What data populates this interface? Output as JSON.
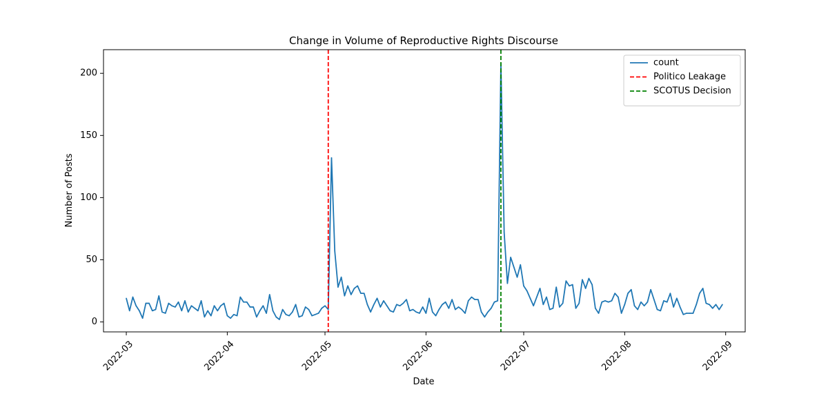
{
  "chart_data": {
    "type": "line",
    "title": "Change in Volume of Reproductive Rights Discourse",
    "xlabel": "Date",
    "ylabel": "Number of Posts",
    "grid": false,
    "legend_position": "top-right",
    "xlim": [
      "2022-02-22",
      "2022-09-07"
    ],
    "ylim": [
      -8,
      219
    ],
    "x_ticks": [
      "2022-03",
      "2022-04",
      "2022-05",
      "2022-06",
      "2022-07",
      "2022-08",
      "2022-09"
    ],
    "y_ticks": [
      0,
      50,
      100,
      150,
      200
    ],
    "series": [
      {
        "name": "count",
        "color": "#1f77b4",
        "style": "solid",
        "x": [
          "2022-03-01",
          "2022-03-02",
          "2022-03-03",
          "2022-03-04",
          "2022-03-05",
          "2022-03-06",
          "2022-03-07",
          "2022-03-08",
          "2022-03-09",
          "2022-03-10",
          "2022-03-11",
          "2022-03-12",
          "2022-03-13",
          "2022-03-14",
          "2022-03-15",
          "2022-03-16",
          "2022-03-17",
          "2022-03-18",
          "2022-03-19",
          "2022-03-20",
          "2022-03-21",
          "2022-03-22",
          "2022-03-23",
          "2022-03-24",
          "2022-03-25",
          "2022-03-26",
          "2022-03-27",
          "2022-03-28",
          "2022-03-29",
          "2022-03-30",
          "2022-03-31",
          "2022-04-01",
          "2022-04-02",
          "2022-04-03",
          "2022-04-04",
          "2022-04-05",
          "2022-04-06",
          "2022-04-07",
          "2022-04-08",
          "2022-04-09",
          "2022-04-10",
          "2022-04-11",
          "2022-04-12",
          "2022-04-13",
          "2022-04-14",
          "2022-04-15",
          "2022-04-16",
          "2022-04-17",
          "2022-04-18",
          "2022-04-19",
          "2022-04-20",
          "2022-04-21",
          "2022-04-22",
          "2022-04-23",
          "2022-04-24",
          "2022-04-25",
          "2022-04-26",
          "2022-04-27",
          "2022-04-28",
          "2022-04-29",
          "2022-04-30",
          "2022-05-01",
          "2022-05-02",
          "2022-05-03",
          "2022-05-04",
          "2022-05-05",
          "2022-05-06",
          "2022-05-07",
          "2022-05-08",
          "2022-05-09",
          "2022-05-10",
          "2022-05-11",
          "2022-05-12",
          "2022-05-13",
          "2022-05-14",
          "2022-05-15",
          "2022-05-16",
          "2022-05-17",
          "2022-05-18",
          "2022-05-19",
          "2022-05-20",
          "2022-05-21",
          "2022-05-22",
          "2022-05-23",
          "2022-05-24",
          "2022-05-25",
          "2022-05-26",
          "2022-05-27",
          "2022-05-28",
          "2022-05-29",
          "2022-05-30",
          "2022-05-31",
          "2022-06-01",
          "2022-06-02",
          "2022-06-03",
          "2022-06-04",
          "2022-06-05",
          "2022-06-06",
          "2022-06-07",
          "2022-06-08",
          "2022-06-09",
          "2022-06-10",
          "2022-06-11",
          "2022-06-12",
          "2022-06-13",
          "2022-06-14",
          "2022-06-15",
          "2022-06-16",
          "2022-06-17",
          "2022-06-18",
          "2022-06-19",
          "2022-06-20",
          "2022-06-21",
          "2022-06-22",
          "2022-06-23",
          "2022-06-24",
          "2022-06-25",
          "2022-06-26",
          "2022-06-27",
          "2022-06-28",
          "2022-06-29",
          "2022-06-30",
          "2022-07-01",
          "2022-07-02",
          "2022-07-03",
          "2022-07-04",
          "2022-07-05",
          "2022-07-06",
          "2022-07-07",
          "2022-07-08",
          "2022-07-09",
          "2022-07-10",
          "2022-07-11",
          "2022-07-12",
          "2022-07-13",
          "2022-07-14",
          "2022-07-15",
          "2022-07-16",
          "2022-07-17",
          "2022-07-18",
          "2022-07-19",
          "2022-07-20",
          "2022-07-21",
          "2022-07-22",
          "2022-07-23",
          "2022-07-24",
          "2022-07-25",
          "2022-07-26",
          "2022-07-27",
          "2022-07-28",
          "2022-07-29",
          "2022-07-30",
          "2022-07-31",
          "2022-08-01",
          "2022-08-02",
          "2022-08-03",
          "2022-08-04",
          "2022-08-05",
          "2022-08-06",
          "2022-08-07",
          "2022-08-08",
          "2022-08-09",
          "2022-08-10",
          "2022-08-11",
          "2022-08-12",
          "2022-08-13",
          "2022-08-14",
          "2022-08-15",
          "2022-08-16",
          "2022-08-17",
          "2022-08-18",
          "2022-08-19",
          "2022-08-20",
          "2022-08-21",
          "2022-08-22",
          "2022-08-23",
          "2022-08-24",
          "2022-08-25",
          "2022-08-26",
          "2022-08-27",
          "2022-08-28",
          "2022-08-29",
          "2022-08-30",
          "2022-08-31"
        ],
        "values": [
          19,
          9,
          20,
          13,
          9,
          3,
          15,
          15,
          9,
          10,
          21,
          8,
          7,
          15,
          13,
          12,
          16,
          9,
          17,
          8,
          13,
          11,
          9,
          17,
          4,
          9,
          5,
          13,
          9,
          13,
          15,
          5,
          3,
          6,
          5,
          20,
          16,
          16,
          12,
          12,
          4,
          9,
          13,
          7,
          22,
          9,
          4,
          2,
          10,
          6,
          5,
          8,
          14,
          4,
          5,
          12,
          10,
          5,
          6,
          7,
          11,
          13,
          10,
          132,
          57,
          28,
          36,
          21,
          29,
          22,
          27,
          29,
          23,
          23,
          14,
          8,
          14,
          19,
          12,
          17,
          13,
          9,
          8,
          14,
          13,
          15,
          18,
          9,
          10,
          8,
          7,
          12,
          7,
          19,
          8,
          5,
          10,
          14,
          16,
          11,
          18,
          10,
          12,
          10,
          7,
          17,
          20,
          18,
          18,
          8,
          4,
          8,
          11,
          16,
          17,
          208,
          72,
          31,
          52,
          44,
          36,
          46,
          29,
          25,
          19,
          13,
          20,
          27,
          14,
          20,
          10,
          11,
          28,
          12,
          15,
          33,
          29,
          30,
          11,
          15,
          34,
          27,
          35,
          30,
          11,
          7,
          16,
          17,
          16,
          17,
          23,
          20,
          7,
          14,
          23,
          26,
          13,
          10,
          16,
          13,
          16,
          26,
          18,
          10,
          9,
          17,
          16,
          23,
          12,
          19,
          12,
          6,
          7,
          7,
          7,
          14,
          23,
          27,
          15,
          14,
          11,
          14,
          10,
          14
        ]
      }
    ],
    "reference_lines": [
      {
        "name": "Politico Leakage",
        "x": "2022-05-02",
        "color": "#ff0000",
        "style": "dashed"
      },
      {
        "name": "SCOTUS Decision",
        "x": "2022-06-24",
        "color": "#008000",
        "style": "dashed"
      }
    ]
  }
}
